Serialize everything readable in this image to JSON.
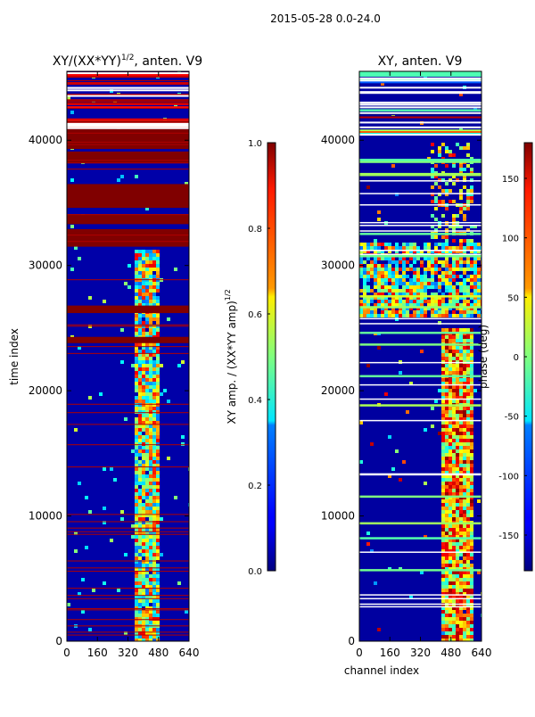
{
  "suptitle": "2015-05-28 0.0-24.0",
  "chart_data": [
    {
      "type": "heatmap",
      "title_main": "XY/(XX*YY)",
      "title_sup": "1/2",
      "title_tail": ", anten. V9",
      "xlabel": "",
      "ylabel": "time index",
      "xlim": [
        0,
        640
      ],
      "ylim": [
        0,
        45500
      ],
      "xticks": [
        0,
        160,
        320,
        480,
        640
      ],
      "yticks": [
        0,
        10000,
        20000,
        30000,
        40000
      ],
      "colorbar": {
        "label_main": "XY amp. / (XX*YY amp)",
        "label_sup": "1/2",
        "range": [
          0.0,
          1.0
        ],
        "ticks": [
          "0.0",
          "0.2",
          "0.4",
          "0.6",
          "0.8",
          "1.0"
        ],
        "colormap": "jet"
      },
      "description_bands": [
        {
          "from": 31500,
          "to": 32900,
          "value": 1.0
        },
        {
          "from": 33300,
          "to": 34100,
          "value": 1.0
        },
        {
          "from": 34600,
          "to": 36500,
          "value": 1.0
        },
        {
          "from": 38200,
          "to": 39100,
          "value": 1.0
        },
        {
          "from": 39300,
          "to": 40900,
          "value": 1.0
        },
        {
          "from": 26200,
          "to": 26800,
          "value": 1.0
        },
        {
          "from": 23800,
          "to": 24300,
          "value": 1.0
        }
      ],
      "bright_channel_range": [
        360,
        460
      ]
    },
    {
      "type": "heatmap",
      "title_main": "XY, anten. V9",
      "xlabel": "channel index",
      "ylabel": "",
      "xlim": [
        0,
        640
      ],
      "ylim": [
        0,
        45500
      ],
      "xticks": [
        0,
        160,
        320,
        480,
        640
      ],
      "yticks": [
        0,
        10000,
        20000,
        30000,
        40000
      ],
      "colorbar": {
        "label_main": "phase (deg)",
        "range": [
          -180,
          180
        ],
        "ticks": [
          "-150",
          "-100",
          "-50",
          "0",
          "50",
          "100",
          "150"
        ],
        "colormap": "jet"
      }
    }
  ]
}
